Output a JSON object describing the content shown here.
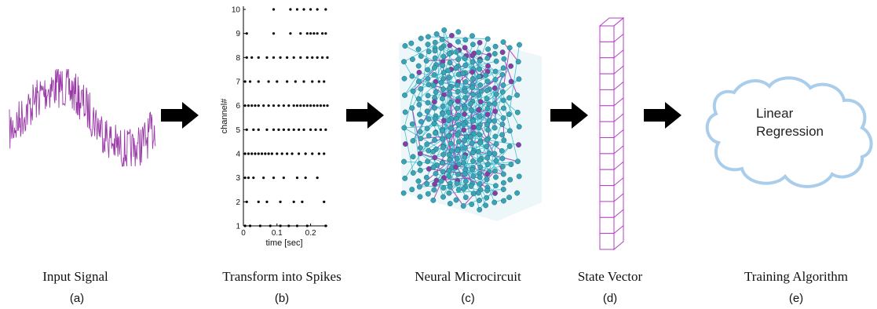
{
  "colors": {
    "signal": "#9a3aa8",
    "arrow": "#000000",
    "network_edge_cyan": "#2ab7cc",
    "network_edge_purple": "#a43ab8",
    "node_cyan": "#3aa3b5",
    "node_purple": "#8e3aa6",
    "vector_outline": "#b040c0",
    "cloud_outline": "#a9cdea"
  },
  "panels": [
    {
      "title": "Input Signal",
      "letter": "(a)"
    },
    {
      "title": "Transform into Spikes",
      "letter": "(b)"
    },
    {
      "title": "Neural Microcircuit",
      "letter": "(c)"
    },
    {
      "title": "State Vector",
      "letter": "(d)"
    },
    {
      "title": "Training Algorithm",
      "letter": "(e)"
    }
  ],
  "cloud": {
    "line1": "Linear",
    "line2": "Regression"
  },
  "state_vector": {
    "cells": 14
  },
  "raster": {
    "ylabel": "channel#",
    "xlabel": "time [sec]",
    "x_ticks": [
      "0",
      "0.1",
      "0.2"
    ],
    "y_ticks": [
      "1",
      "2",
      "3",
      "4",
      "5",
      "6",
      "7",
      "8",
      "9",
      "10"
    ],
    "xlim": [
      0,
      0.25
    ],
    "ylim": [
      1,
      10
    ],
    "spikes": [
      {
        "channel": 1,
        "times": [
          0.005,
          0.02,
          0.05,
          0.08,
          0.11,
          0.135,
          0.16,
          0.19,
          0.245
        ]
      },
      {
        "channel": 2,
        "times": [
          0.01,
          0.045,
          0.07,
          0.11,
          0.15,
          0.175,
          0.24
        ]
      },
      {
        "channel": 3,
        "times": [
          0.005,
          0.015,
          0.03,
          0.06,
          0.09,
          0.12,
          0.16,
          0.185,
          0.22
        ]
      },
      {
        "channel": 4,
        "times": [
          0.005,
          0.015,
          0.025,
          0.035,
          0.045,
          0.055,
          0.065,
          0.075,
          0.085,
          0.1,
          0.115,
          0.13,
          0.145,
          0.165,
          0.185,
          0.205,
          0.225,
          0.24
        ]
      },
      {
        "channel": 5,
        "times": [
          0.01,
          0.03,
          0.045,
          0.07,
          0.09,
          0.105,
          0.12,
          0.135,
          0.15,
          0.165,
          0.18,
          0.2,
          0.215,
          0.23,
          0.245
        ]
      },
      {
        "channel": 6,
        "times": [
          0.005,
          0.015,
          0.025,
          0.035,
          0.045,
          0.06,
          0.075,
          0.09,
          0.105,
          0.12,
          0.135,
          0.15,
          0.16,
          0.17,
          0.18,
          0.19,
          0.2,
          0.21,
          0.22,
          0.23,
          0.24,
          0.25
        ]
      },
      {
        "channel": 7,
        "times": [
          0.005,
          0.02,
          0.045,
          0.075,
          0.1,
          0.13,
          0.155,
          0.18,
          0.205,
          0.225,
          0.24
        ]
      },
      {
        "channel": 8,
        "times": [
          0.01,
          0.025,
          0.045,
          0.07,
          0.09,
          0.11,
          0.13,
          0.15,
          0.17,
          0.19,
          0.205,
          0.22,
          0.235,
          0.25
        ]
      },
      {
        "channel": 9,
        "times": [
          0.01,
          0.09,
          0.14,
          0.17,
          0.19,
          0.2,
          0.21,
          0.22,
          0.235,
          0.245
        ]
      },
      {
        "channel": 10,
        "times": [
          0.09,
          0.14,
          0.16,
          0.18,
          0.2,
          0.22,
          0.245
        ]
      }
    ]
  }
}
